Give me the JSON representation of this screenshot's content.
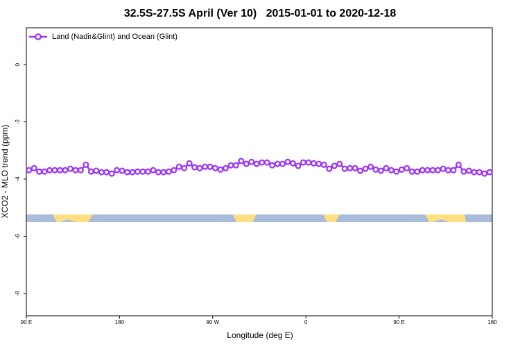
{
  "chart_data": {
    "type": "line",
    "title": "32.5S-27.5S April (Ver 10)   2015-01-01 to 2020-12-18",
    "xlabel": "Longitude (deg E)",
    "ylabel": "XCO2 - MLO trend (ppm)",
    "xlim": [
      90,
      540
    ],
    "ylim": [
      -8.78,
      1.29
    ],
    "xticks": [
      {
        "value": 90,
        "label": "90 E"
      },
      {
        "value": 180,
        "label": "180"
      },
      {
        "value": 270,
        "label": "90 W"
      },
      {
        "value": 360,
        "label": "0"
      },
      {
        "value": 450,
        "label": "90 E"
      },
      {
        "value": 540,
        "label": "180"
      }
    ],
    "yticks": [
      0,
      -2,
      -4,
      -6,
      -8
    ],
    "legend": "top-left",
    "x": [
      92.5,
      97.5,
      102.5,
      107.5,
      112.5,
      117.5,
      122.5,
      127.5,
      132.5,
      137.5,
      142.5,
      147.5,
      152.5,
      157.5,
      162.5,
      167.5,
      172.5,
      177.5,
      182.5,
      187.5,
      192.5,
      197.5,
      202.5,
      207.5,
      212.5,
      217.5,
      222.5,
      227.5,
      232.5,
      237.5,
      242.5,
      247.5,
      252.5,
      257.5,
      262.5,
      267.5,
      272.5,
      277.5,
      282.5,
      287.5,
      292.5,
      297.5,
      302.5,
      307.5,
      312.5,
      317.5,
      322.5,
      327.5,
      332.5,
      337.5,
      342.5,
      347.5,
      352.5,
      357.5,
      362.5,
      367.5,
      372.5,
      377.5,
      382.5,
      387.5,
      392.5,
      397.5,
      402.5,
      407.5,
      412.5,
      417.5,
      422.5,
      427.5,
      432.5,
      437.5,
      442.5,
      447.5,
      452.5,
      457.5,
      462.5,
      467.5,
      472.5,
      477.5,
      482.5,
      487.5,
      492.5,
      497.5,
      502.5,
      507.5,
      512.5,
      517.5,
      522.5,
      527.5,
      532.5,
      537.5
    ],
    "series": [
      {
        "name": "Land (Nadir&Glint) and Ocean (Glint)",
        "color": "#9b30ff",
        "values": [
          -3.69,
          -3.62,
          -3.74,
          -3.74,
          -3.69,
          -3.69,
          -3.69,
          -3.69,
          -3.64,
          -3.69,
          -3.69,
          -3.5,
          -3.74,
          -3.71,
          -3.76,
          -3.76,
          -3.81,
          -3.69,
          -3.71,
          -3.76,
          -3.76,
          -3.74,
          -3.74,
          -3.74,
          -3.69,
          -3.76,
          -3.76,
          -3.74,
          -3.69,
          -3.57,
          -3.62,
          -3.45,
          -3.59,
          -3.62,
          -3.57,
          -3.57,
          -3.62,
          -3.67,
          -3.62,
          -3.52,
          -3.52,
          -3.37,
          -3.47,
          -3.4,
          -3.47,
          -3.42,
          -3.42,
          -3.52,
          -3.47,
          -3.47,
          -3.4,
          -3.45,
          -3.54,
          -3.42,
          -3.42,
          -3.45,
          -3.47,
          -3.5,
          -3.64,
          -3.54,
          -3.47,
          -3.64,
          -3.62,
          -3.62,
          -3.71,
          -3.64,
          -3.57,
          -3.67,
          -3.71,
          -3.62,
          -3.69,
          -3.74,
          -3.67,
          -3.62,
          -3.74,
          -3.74,
          -3.69,
          -3.69,
          -3.69,
          -3.69,
          -3.64,
          -3.69,
          -3.69,
          -3.5,
          -3.74,
          -3.71,
          -3.76,
          -3.76,
          -3.81,
          -3.76
        ]
      }
    ]
  }
}
